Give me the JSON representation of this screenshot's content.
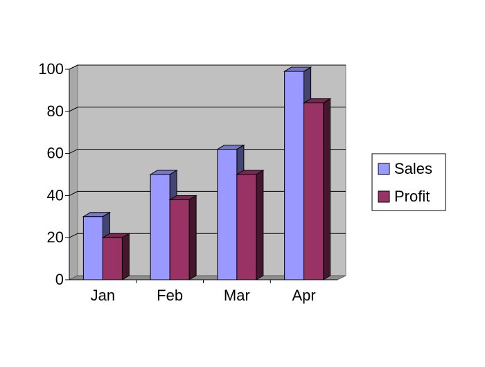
{
  "chart_data": {
    "type": "bar",
    "style": "3d-clustered-column",
    "categories": [
      "Jan",
      "Feb",
      "Mar",
      "Apr"
    ],
    "series": [
      {
        "name": "Sales",
        "values": [
          30,
          50,
          62,
          99
        ],
        "color": "#9999ff"
      },
      {
        "name": "Profit",
        "values": [
          20,
          38,
          50,
          84
        ],
        "color": "#993366"
      }
    ],
    "ylim": [
      0,
      100
    ],
    "yticks": [
      0,
      20,
      40,
      60,
      80,
      100
    ],
    "title": "",
    "xlabel": "",
    "ylabel": "",
    "grid": true,
    "legend_position": "right",
    "plot_background": "#c0c0c0"
  }
}
